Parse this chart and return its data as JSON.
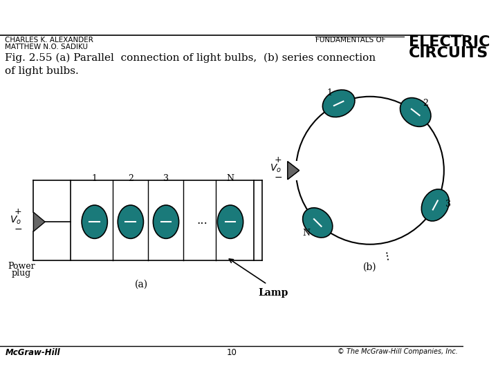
{
  "bg_color": "#ffffff",
  "title_left_line1": "CHARLES K. ALEXANDER",
  "title_left_line2": "MATTHEW N.O. SADIKU",
  "title_right_small": "FUNDAMENTALS OF",
  "title_right_large_line1": "ELECTRIC",
  "title_right_large_line2": "CIRCUITS",
  "caption": "Fig. 2.55 (a) Parallel  connection of light bulbs,  (b) series connection\nof light bulbs.",
  "footer_left": "McGraw-Hill",
  "footer_center": "10",
  "footer_right": "© The McGraw-Hill Companies, Inc.",
  "bulb_color": "#1a7a7a",
  "bulb_edge_color": "#000000",
  "wire_color": "#000000",
  "source_color": "#666666",
  "label_a": "(a)",
  "label_b": "(b)"
}
